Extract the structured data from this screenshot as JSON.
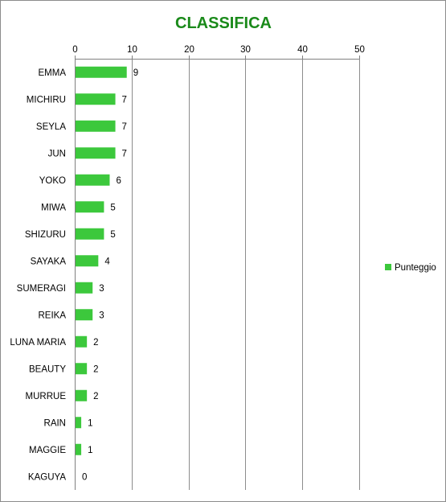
{
  "chart_data": {
    "type": "bar",
    "orientation": "horizontal",
    "title": "CLASSIFICA",
    "xlabel": "",
    "ylabel": "",
    "xlim": [
      0,
      50
    ],
    "x_ticks": [
      0,
      10,
      20,
      30,
      40,
      50
    ],
    "grid": true,
    "x_axis_position": "top",
    "legend": {
      "placement": "right",
      "entries": [
        "Punteggio"
      ]
    },
    "categories": [
      "EMMA",
      "MICHIRU",
      "SEYLA",
      "JUN",
      "YOKO",
      "MIWA",
      "SHIZURU",
      "SAYAKA",
      "SUMERAGI",
      "REIKA",
      "LUNA MARIA",
      "BEAUTY",
      "MURRUE",
      "RAIN",
      "MAGGIE",
      "KAGUYA"
    ],
    "series": [
      {
        "name": "Punteggio",
        "color": "#3cc83c",
        "values": [
          9,
          7,
          7,
          7,
          6,
          5,
          5,
          4,
          3,
          3,
          2,
          2,
          2,
          1,
          1,
          0
        ]
      }
    ],
    "data_labels": true
  }
}
